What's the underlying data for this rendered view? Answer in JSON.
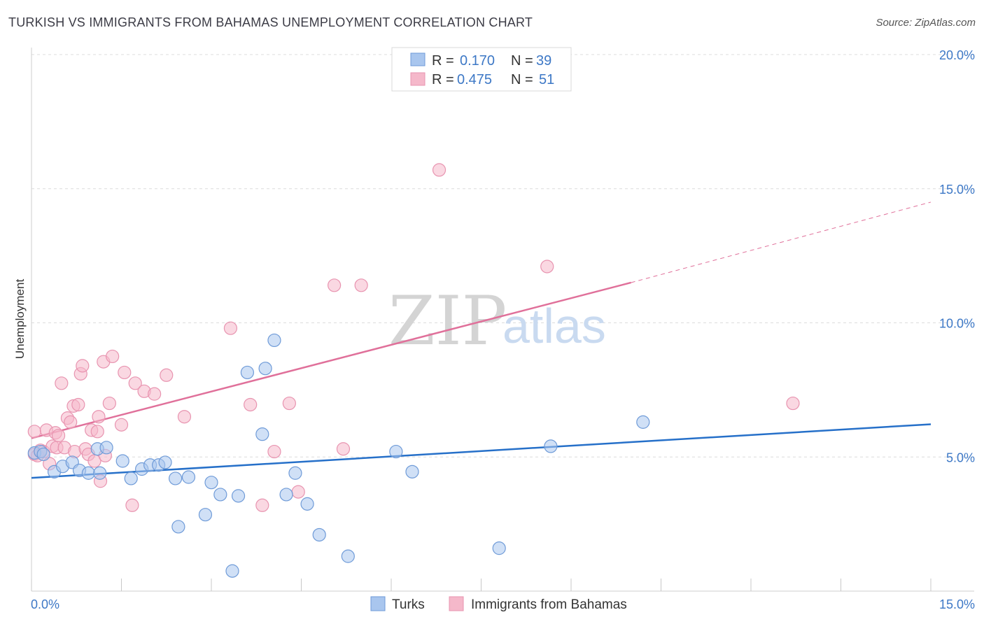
{
  "header": {
    "title": "TURKISH VS IMMIGRANTS FROM BAHAMAS UNEMPLOYMENT CORRELATION CHART",
    "source": "Source: ZipAtlas.com"
  },
  "legend_box": {
    "series1": {
      "r_label": "R =",
      "r_value": "0.170",
      "n_label": "N =",
      "n_value": "39"
    },
    "series2": {
      "r_label": "R =",
      "r_value": "0.475",
      "n_label": "N =",
      "n_value": "51"
    }
  },
  "watermark": {
    "zip": "ZIP",
    "atlas": "atlas"
  },
  "colors": {
    "blue_fill": "#a9c6ee",
    "blue_stroke": "#6f9bd8",
    "blue_line": "#2670c9",
    "pink_fill": "#f5b8ca",
    "pink_stroke": "#e894b0",
    "pink_line": "#e0709a",
    "axis_label": "#3d78c6",
    "grid": "#dcdcdc"
  },
  "chart_data": {
    "type": "scatter",
    "title": "TURKISH VS IMMIGRANTS FROM BAHAMAS UNEMPLOYMENT CORRELATION CHART",
    "xlabel": "",
    "ylabel": "Unemployment",
    "xlim": [
      0,
      15
    ],
    "ylim": [
      0,
      20
    ],
    "x_tick_labels": [
      "0.0%",
      "15.0%"
    ],
    "y_ticks": [
      5,
      10,
      15,
      20
    ],
    "y_tick_labels": [
      "5.0%",
      "10.0%",
      "15.0%",
      "20.0%"
    ],
    "grid": "horizontal dashed",
    "legend_position": "bottom-center",
    "series": [
      {
        "name": "Turks",
        "color": "#a9c6ee",
        "x": [
          0.05,
          0.15,
          0.2,
          0.38,
          0.52,
          0.68,
          0.8,
          0.95,
          1.1,
          1.14,
          1.25,
          1.52,
          1.66,
          1.84,
          1.98,
          2.12,
          2.23,
          2.4,
          2.45,
          2.62,
          2.9,
          3.0,
          3.15,
          3.35,
          3.45,
          3.6,
          3.85,
          3.9,
          4.05,
          4.25,
          4.4,
          4.6,
          4.8,
          5.28,
          6.08,
          6.35,
          7.8,
          8.66,
          10.2
        ],
        "y": [
          5.15,
          5.2,
          5.1,
          4.45,
          4.65,
          4.8,
          4.5,
          4.4,
          5.3,
          4.4,
          5.35,
          4.85,
          4.2,
          4.55,
          4.7,
          4.7,
          4.8,
          4.2,
          2.4,
          4.25,
          2.85,
          4.05,
          3.6,
          0.75,
          3.55,
          8.15,
          5.85,
          8.3,
          9.35,
          3.6,
          4.4,
          3.25,
          2.1,
          1.3,
          5.2,
          4.45,
          1.6,
          5.4,
          6.3
        ]
      },
      {
        "name": "Immigrants from Bahamas",
        "color": "#f5b8ca",
        "x": [
          0.05,
          0.05,
          0.1,
          0.15,
          0.2,
          0.25,
          0.3,
          0.35,
          0.4,
          0.42,
          0.45,
          0.5,
          0.55,
          0.6,
          0.65,
          0.7,
          0.72,
          0.78,
          0.82,
          0.85,
          0.9,
          0.95,
          1.0,
          1.05,
          1.1,
          1.12,
          1.15,
          1.2,
          1.23,
          1.3,
          1.35,
          1.5,
          1.55,
          1.68,
          1.73,
          1.88,
          2.05,
          2.25,
          2.55,
          3.32,
          3.65,
          3.85,
          4.05,
          4.3,
          4.45,
          5.05,
          5.2,
          5.5,
          6.8,
          8.6,
          12.7
        ],
        "y": [
          5.1,
          5.95,
          5.05,
          5.25,
          5.2,
          6.0,
          4.75,
          5.4,
          5.9,
          5.35,
          5.8,
          7.75,
          5.35,
          6.45,
          6.3,
          6.9,
          5.2,
          6.95,
          8.1,
          8.4,
          5.3,
          5.1,
          6.0,
          4.85,
          5.95,
          6.5,
          4.1,
          8.55,
          5.05,
          7.0,
          8.75,
          6.2,
          8.15,
          3.2,
          7.75,
          7.45,
          7.35,
          8.05,
          6.5,
          9.8,
          6.95,
          3.2,
          5.2,
          7.0,
          3.7,
          11.4,
          5.3,
          11.4,
          15.7,
          12.1,
          7.0
        ]
      }
    ],
    "trendlines": [
      {
        "series": "Turks",
        "x": [
          0,
          15
        ],
        "y": [
          4.22,
          6.22
        ],
        "style": "solid"
      },
      {
        "series": "Immigrants from Bahamas",
        "x": [
          0,
          10.0
        ],
        "y": [
          5.7,
          11.5
        ],
        "style": "solid"
      },
      {
        "series": "Immigrants from Bahamas",
        "x": [
          10.0,
          15
        ],
        "y": [
          11.5,
          14.5
        ],
        "style": "dashed"
      }
    ]
  }
}
